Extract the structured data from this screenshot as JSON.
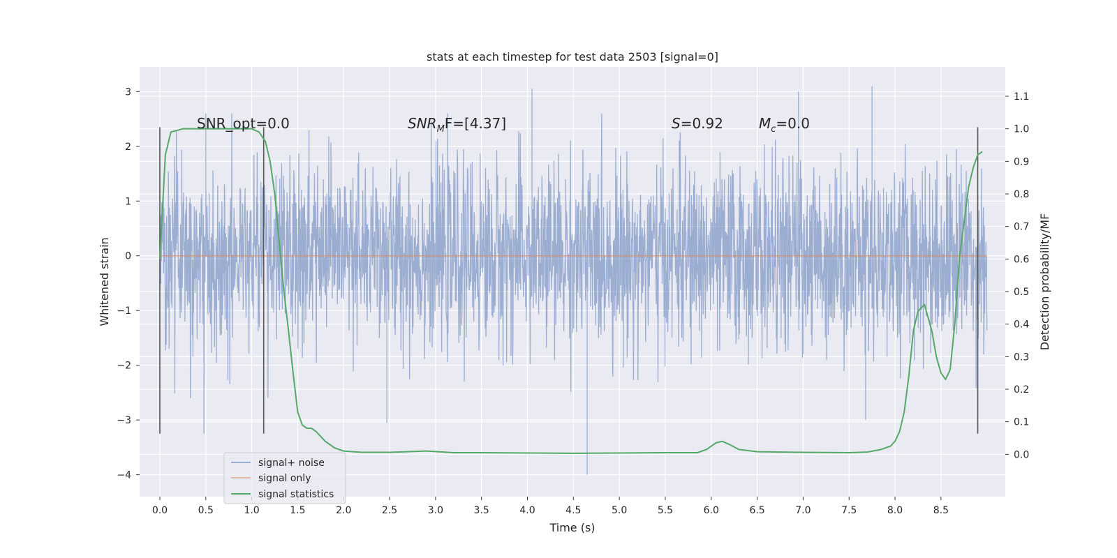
{
  "chart_data": {
    "type": "line",
    "title": "stats at each timestep for test data 2503 [signal=0]",
    "xlabel": "Time (s)",
    "ylabel": "Whitened strain",
    "y2label": "Detection probability/MF",
    "xlim": [
      -0.22,
      9.2
    ],
    "ylim": [
      -4.4,
      3.45
    ],
    "y2lim": [
      -0.13,
      1.19
    ],
    "xticks": [
      "0.0",
      "0.5",
      "1.0",
      "1.5",
      "2.0",
      "2.5",
      "3.0",
      "3.5",
      "4.0",
      "4.5",
      "5.0",
      "5.5",
      "6.0",
      "6.5",
      "7.0",
      "7.5",
      "8.0",
      "8.5"
    ],
    "xtick_values": [
      0.0,
      0.5,
      1.0,
      1.5,
      2.0,
      2.5,
      3.0,
      3.5,
      4.0,
      4.5,
      5.0,
      5.5,
      6.0,
      6.5,
      7.0,
      7.5,
      8.0,
      8.5
    ],
    "yticks": [
      "3",
      "2",
      "1",
      "0",
      "−1",
      "−2",
      "−3",
      "−4"
    ],
    "ytick_values": [
      3,
      2,
      1,
      0,
      -1,
      -2,
      -3,
      -4
    ],
    "y2ticks": [
      "1.1",
      "1.0",
      "0.9",
      "0.8",
      "0.7",
      "0.6",
      "0.5",
      "0.4",
      "0.3",
      "0.2",
      "0.1",
      "0.0"
    ],
    "y2tick_values": [
      1.1,
      1.0,
      0.9,
      0.8,
      0.7,
      0.6,
      0.5,
      0.4,
      0.3,
      0.2,
      0.1,
      0.0
    ],
    "grid": true,
    "legend_position": "lower-left",
    "series": [
      {
        "name": "signal+ noise",
        "color": "#4c72b0",
        "axis": "left",
        "x_range": [
          0.0,
          9.0
        ],
        "approx_envelope": [
          -2.6,
          2.6
        ],
        "spikes": [
          {
            "x": 0.48,
            "y": -3.25
          },
          {
            "x": 0.5,
            "y": 2.6
          },
          {
            "x": 2.47,
            "y": -3.05
          },
          {
            "x": 4.05,
            "y": 3.05
          },
          {
            "x": 4.65,
            "y": -4.0
          },
          {
            "x": 6.95,
            "y": 3.0
          },
          {
            "x": 7.75,
            "y": 3.1
          },
          {
            "x": 7.68,
            "y": -3.0
          }
        ]
      },
      {
        "name": "signal only",
        "color": "#dd8452",
        "axis": "left",
        "x": [
          0.0,
          9.0
        ],
        "y": [
          0.0,
          0.0
        ]
      },
      {
        "name": "signal statistics",
        "color": "#55a868",
        "axis": "right",
        "x": [
          0.0,
          0.06,
          0.12,
          0.25,
          0.4,
          0.6,
          0.8,
          1.0,
          1.08,
          1.15,
          1.2,
          1.25,
          1.3,
          1.35,
          1.4,
          1.45,
          1.5,
          1.55,
          1.6,
          1.65,
          1.7,
          1.8,
          1.9,
          2.0,
          2.2,
          2.5,
          2.9,
          3.2,
          3.5,
          4.0,
          4.5,
          5.0,
          5.5,
          5.85,
          5.95,
          6.05,
          6.12,
          6.2,
          6.3,
          6.5,
          7.0,
          7.5,
          7.7,
          7.85,
          7.95,
          8.0,
          8.05,
          8.1,
          8.15,
          8.2,
          8.25,
          8.32,
          8.4,
          8.45,
          8.5,
          8.55,
          8.6,
          8.65,
          8.7,
          8.8,
          8.85,
          8.9,
          8.95
        ],
        "y": [
          0.6,
          0.92,
          0.99,
          1.0,
          1.0,
          1.0,
          1.0,
          1.0,
          0.99,
          0.96,
          0.9,
          0.8,
          0.65,
          0.5,
          0.38,
          0.25,
          0.13,
          0.09,
          0.08,
          0.08,
          0.07,
          0.04,
          0.02,
          0.01,
          0.006,
          0.006,
          0.01,
          0.005,
          0.005,
          0.004,
          0.003,
          0.004,
          0.005,
          0.005,
          0.015,
          0.035,
          0.04,
          0.03,
          0.015,
          0.008,
          0.006,
          0.005,
          0.007,
          0.015,
          0.025,
          0.04,
          0.07,
          0.13,
          0.24,
          0.38,
          0.44,
          0.46,
          0.38,
          0.3,
          0.25,
          0.23,
          0.26,
          0.4,
          0.6,
          0.82,
          0.88,
          0.92,
          0.93
        ]
      }
    ],
    "vlines": [
      0.0,
      1.13,
      8.9
    ],
    "vline_color": "#555555",
    "annotations": [
      {
        "text": "SNR_opt=0.0"
      },
      {
        "text": "SNR_MF=[4.37]",
        "parts": [
          "SNR",
          "M",
          "F=[4.37]"
        ]
      },
      {
        "text": "S=0.92",
        "parts": [
          "S",
          "=0.92"
        ]
      },
      {
        "text": "M_c=0.0",
        "parts": [
          "M",
          "c",
          "=0.0"
        ]
      }
    ]
  }
}
